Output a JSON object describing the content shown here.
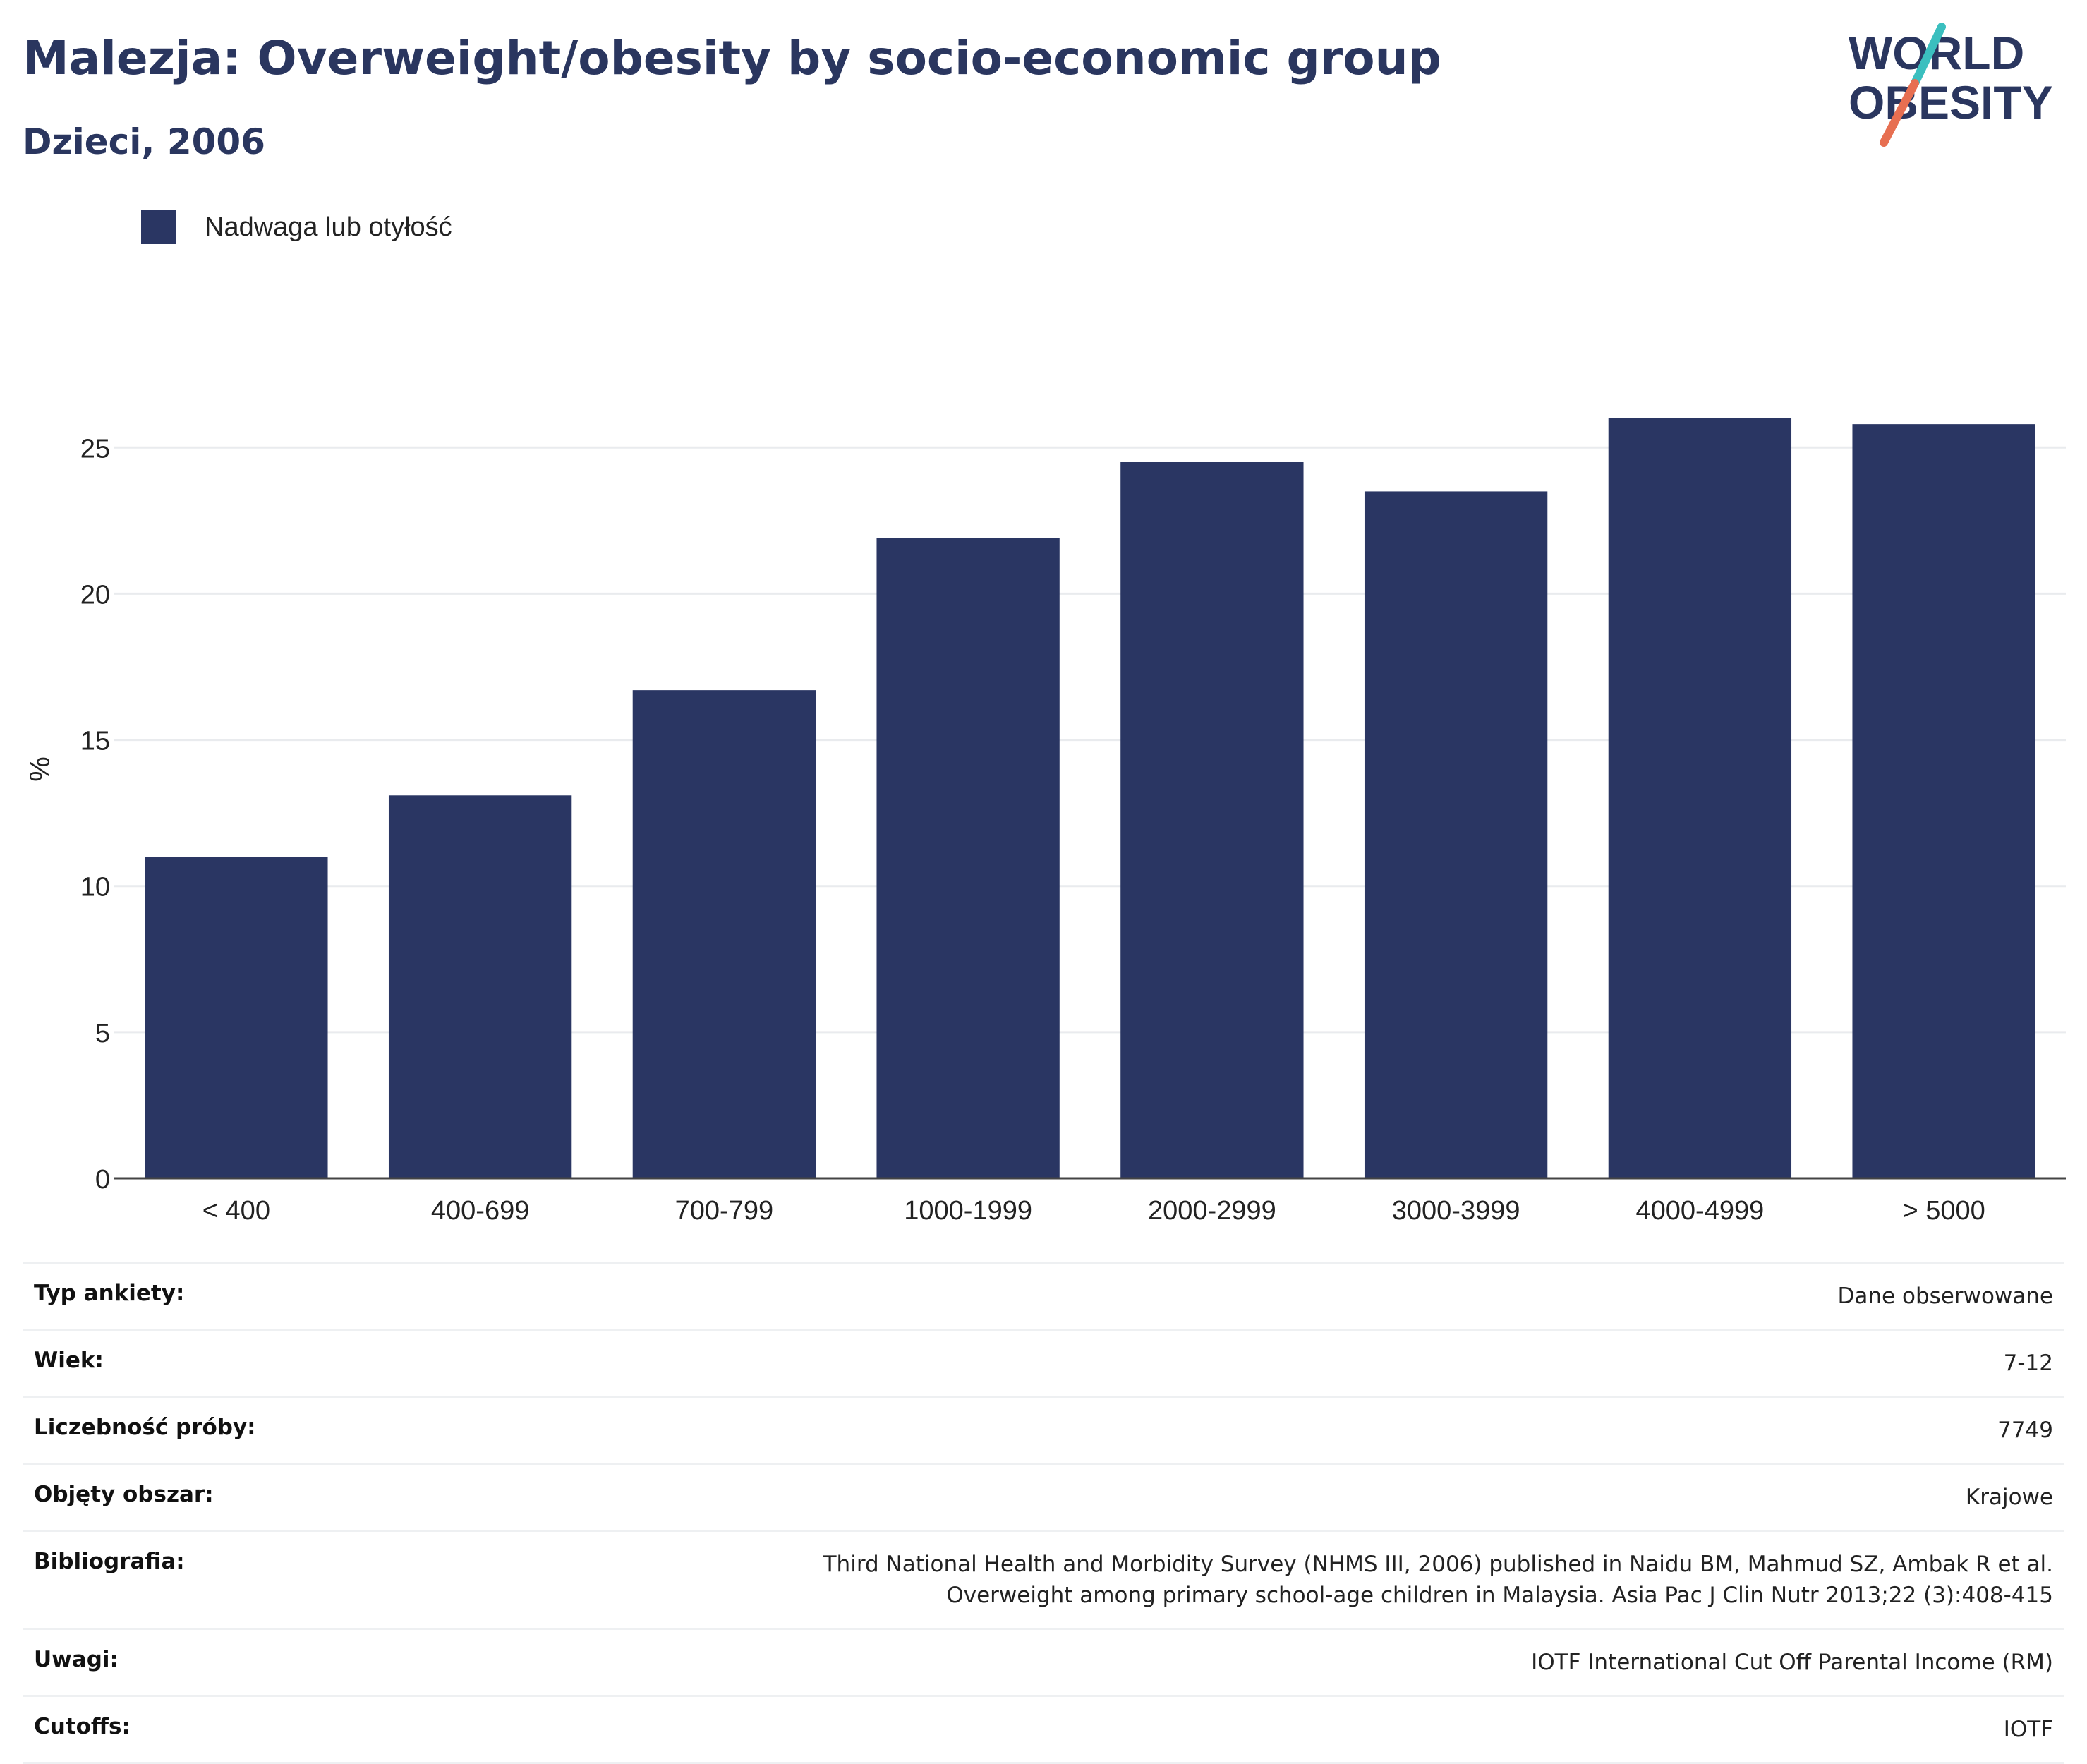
{
  "header": {
    "title": "Malezja: Overweight/obesity by socio-economic group",
    "subtitle": "Dzieci, 2006"
  },
  "logo": {
    "line1": "WORLD",
    "line2": "OBESITY",
    "colors": {
      "text": "#2a365f",
      "slash_teal": "#3bbfbf",
      "slash_red": "#e76f51"
    }
  },
  "legend": {
    "label": "Nadwaga lub otyłość"
  },
  "chart_data": {
    "type": "bar",
    "ylabel": "%",
    "categories": [
      "< 400",
      "400-699",
      "700-799",
      "1000-1999",
      "2000-2999",
      "3000-3999",
      "4000-4999",
      "> 5000"
    ],
    "series": [
      {
        "name": "Nadwaga lub otyłość",
        "values": [
          11.0,
          13.1,
          16.7,
          21.9,
          24.5,
          23.5,
          26.0,
          25.8
        ]
      }
    ],
    "ylim": [
      0,
      28
    ],
    "yticks": [
      0,
      5,
      10,
      15,
      20,
      25
    ],
    "grid": true,
    "legend_position": "top-left",
    "colors": {
      "bar": "#2a3663",
      "grid": "#e9ebee",
      "axis": "#444444"
    }
  },
  "meta": {
    "rows": [
      {
        "label": "Typ ankiety:",
        "value": "Dane obserwowane"
      },
      {
        "label": "Wiek:",
        "value": "7-12"
      },
      {
        "label": "Liczebność próby:",
        "value": "7749"
      },
      {
        "label": "Objęty obszar:",
        "value": "Krajowe"
      },
      {
        "label": "Bibliografia:",
        "value": "Third National Health and Morbidity Survey (NHMS III, 2006) published in Naidu BM, Mahmud SZ, Ambak R et al. Overweight among primary school-age children in Malaysia. Asia Pac J Clin Nutr 2013;22 (3):408-415"
      },
      {
        "label": "Uwagi:",
        "value": "IOTF International Cut Off Parental Income (RM)"
      },
      {
        "label": "Cutoffs:",
        "value": "IOTF"
      }
    ]
  }
}
